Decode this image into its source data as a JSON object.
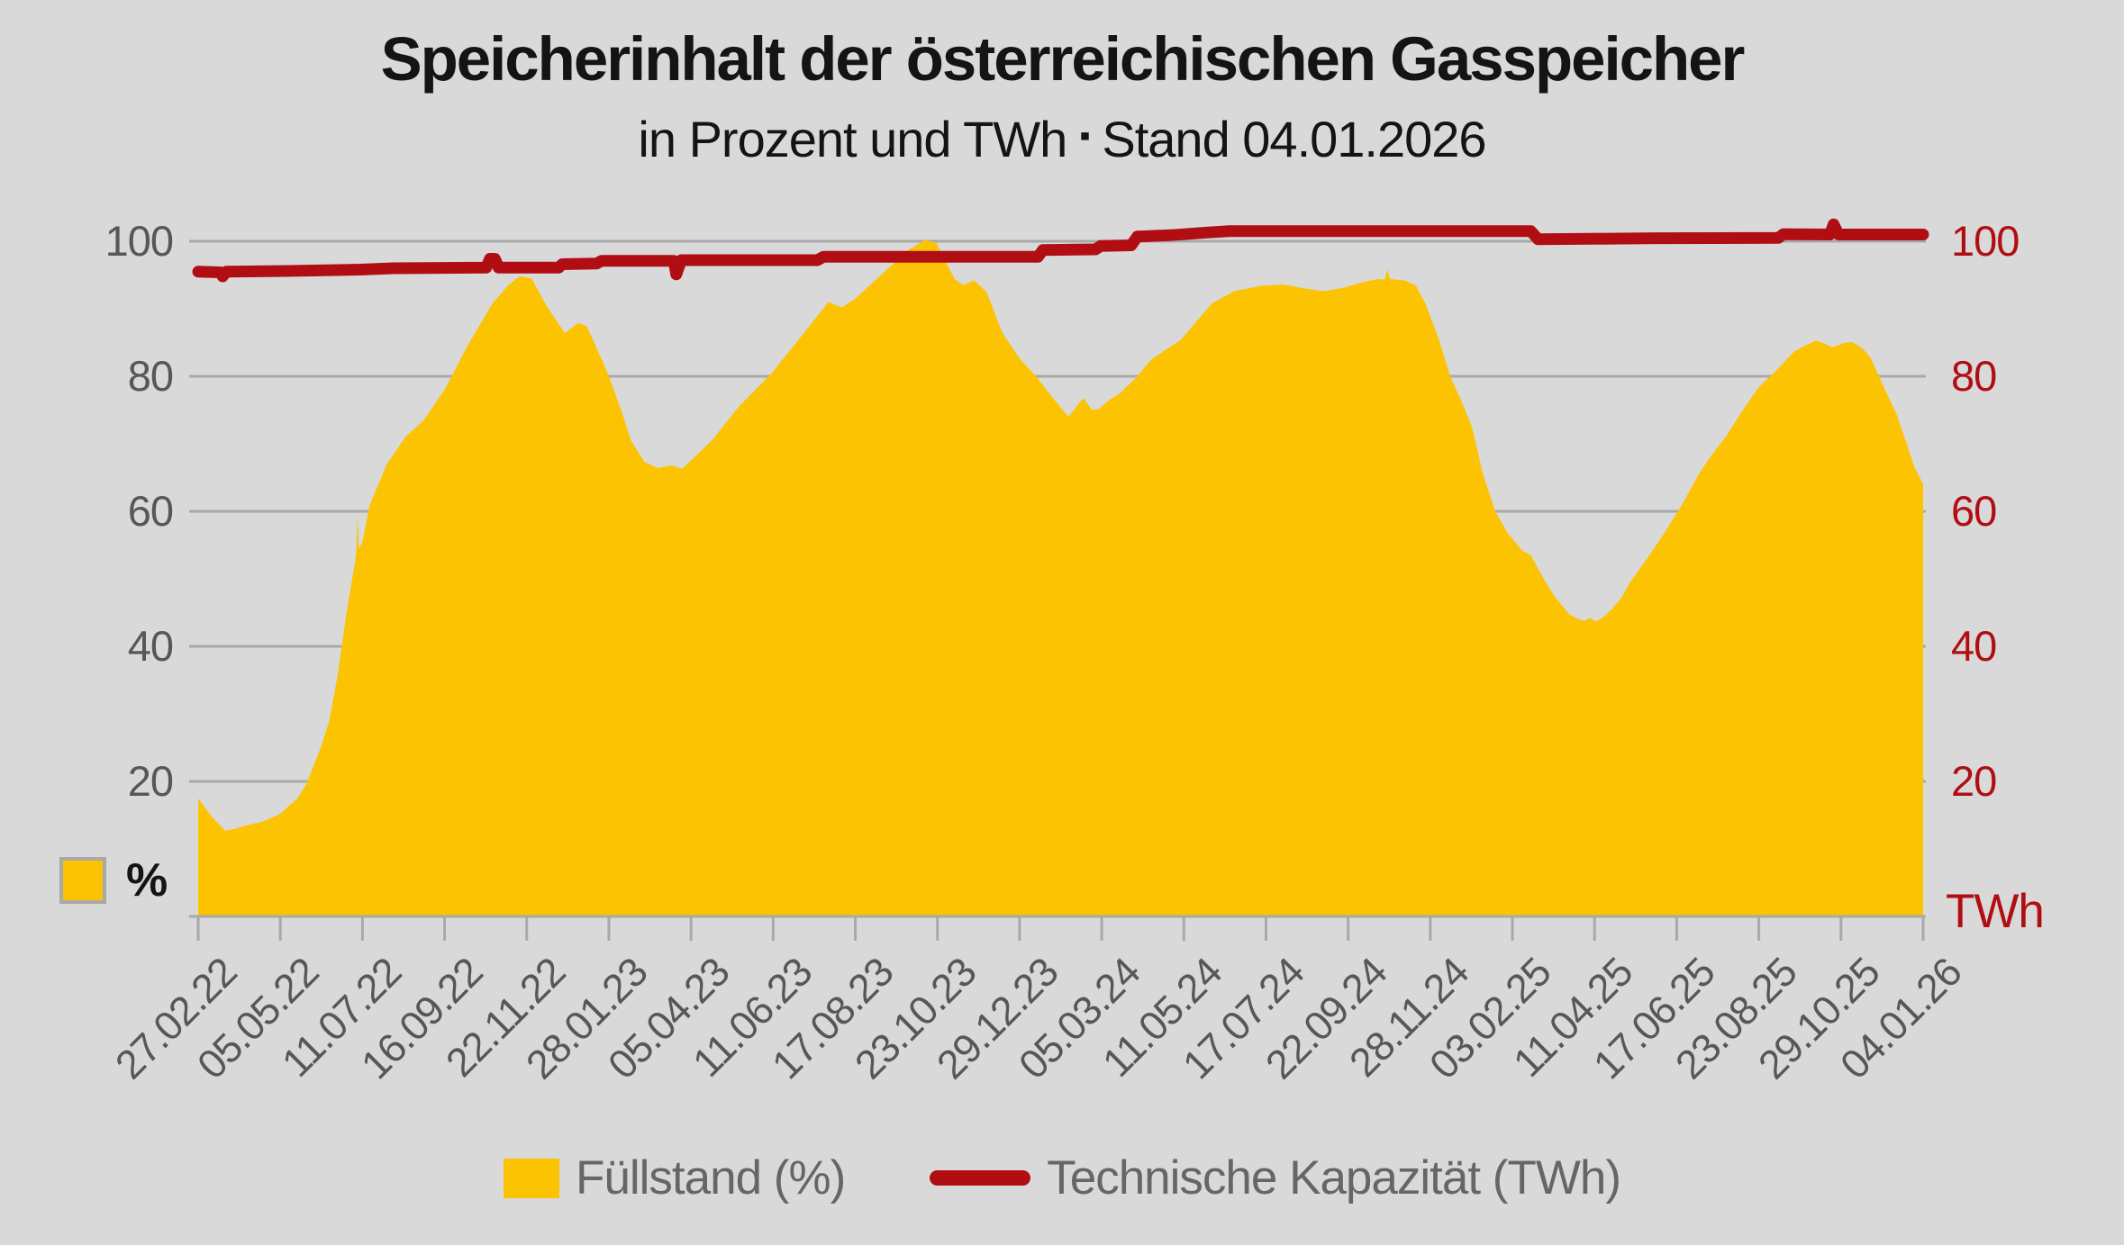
{
  "title": "Speicherinhalt der österreichischen Gasspeicher",
  "subtitle": {
    "left": "in Prozent und TWh",
    "separator": "▪",
    "right": "Stand 04.01.2026"
  },
  "legend": {
    "fill_label": "Füllstand (%)",
    "capacity_label": "Technische Kapazität (TWh)"
  },
  "left_axis_unit": "%",
  "right_axis_unit": "TWh",
  "colors": {
    "background": "#d9d9d9",
    "fill_area": "#fcc303",
    "capacity_line": "#b00e13",
    "gridline": "#a9a9a9",
    "axis_text": "#575757",
    "right_axis_text": "#b00e13",
    "title_text": "#141414",
    "legend_text": "#666666"
  },
  "chart_data": {
    "type": "area",
    "title": "Speicherinhalt der österreichischen Gasspeicher",
    "subtitle": "in Prozent und TWh · Stand 04.01.2026",
    "x_start_date": "27.02.22",
    "x_end_date": "04.01.26",
    "x_span_days": 1407,
    "x_tick_interval_days": 67,
    "x_tick_labels": [
      "27.02.22",
      "05.05.22",
      "11.07.22",
      "16.09.22",
      "22.11.22",
      "28.01.23",
      "05.04.23",
      "11.06.23",
      "17.08.23",
      "23.10.23",
      "29.12.23",
      "05.03.24",
      "11.05.24",
      "17.07.24",
      "22.09.24",
      "28.11.24",
      "03.02.25",
      "11.04.25",
      "17.06.25",
      "23.08.25",
      "29.10.25",
      "04.01.26"
    ],
    "left_axis": {
      "label": "%",
      "ticks": [
        20,
        40,
        60,
        80,
        100
      ],
      "range": [
        0,
        104
      ]
    },
    "right_axis": {
      "label": "TWh",
      "ticks": [
        20,
        40,
        60,
        80,
        100
      ],
      "range": [
        0,
        104
      ]
    },
    "grid": true,
    "legend_position": "bottom",
    "series": [
      {
        "name": "Füllstand (%)",
        "type": "area",
        "axis": "left",
        "color": "#fcc303",
        "points": [
          [
            0,
            17.5
          ],
          [
            11,
            14.8
          ],
          [
            22,
            12.7
          ],
          [
            31,
            13
          ],
          [
            37,
            13.4
          ],
          [
            52,
            14
          ],
          [
            67,
            15.2
          ],
          [
            81,
            17.5
          ],
          [
            88,
            19.5
          ],
          [
            100,
            25
          ],
          [
            107,
            29
          ],
          [
            114,
            36
          ],
          [
            121,
            45
          ],
          [
            128,
            52.5
          ],
          [
            129,
            54
          ],
          [
            130,
            59.5
          ],
          [
            131,
            54.5
          ],
          [
            134,
            55.5
          ],
          [
            140,
            61
          ],
          [
            154,
            67
          ],
          [
            169,
            71
          ],
          [
            184,
            73.5
          ],
          [
            201,
            78
          ],
          [
            220,
            84.6
          ],
          [
            240,
            90.8
          ],
          [
            253,
            93.5
          ],
          [
            262,
            94.8
          ],
          [
            272,
            94.5
          ],
          [
            284,
            90.5
          ],
          [
            299,
            86.4
          ],
          [
            310,
            87.9
          ],
          [
            317,
            87.4
          ],
          [
            334,
            80.5
          ],
          [
            345,
            75
          ],
          [
            353,
            70.5
          ],
          [
            364,
            67.3
          ],
          [
            375,
            66.4
          ],
          [
            386,
            66.8
          ],
          [
            395,
            66.3
          ],
          [
            400,
            67.2
          ],
          [
            419,
            70.5
          ],
          [
            441,
            75.5
          ],
          [
            467,
            80.3
          ],
          [
            494,
            86.4
          ],
          [
            514,
            91
          ],
          [
            525,
            90.2
          ],
          [
            536,
            91.5
          ],
          [
            551,
            94
          ],
          [
            566,
            96.5
          ],
          [
            580,
            98.8
          ],
          [
            593,
            100.2
          ],
          [
            602,
            99.8
          ],
          [
            611,
            96.5
          ],
          [
            617,
            94.4
          ],
          [
            624,
            93.5
          ],
          [
            633,
            94.2
          ],
          [
            643,
            92.5
          ],
          [
            656,
            86.4
          ],
          [
            671,
            82.4
          ],
          [
            683,
            80.1
          ],
          [
            698,
            76.6
          ],
          [
            710,
            74
          ],
          [
            722,
            76.8
          ],
          [
            729,
            75
          ],
          [
            735,
            75.2
          ],
          [
            743,
            76.5
          ],
          [
            752,
            77.5
          ],
          [
            766,
            80
          ],
          [
            777,
            82.4
          ],
          [
            793,
            84.4
          ],
          [
            801,
            85.3
          ],
          [
            816,
            88.5
          ],
          [
            827,
            90.8
          ],
          [
            845,
            92.6
          ],
          [
            867,
            93.4
          ],
          [
            885,
            93.6
          ],
          [
            903,
            93
          ],
          [
            918,
            92.6
          ],
          [
            934,
            93.1
          ],
          [
            951,
            94
          ],
          [
            962,
            94.4
          ],
          [
            968,
            94.3
          ],
          [
            970,
            95.9
          ],
          [
            972,
            94.4
          ],
          [
            984,
            94.2
          ],
          [
            993,
            93.5
          ],
          [
            1001,
            90.8
          ],
          [
            1012,
            85.5
          ],
          [
            1021,
            80.1
          ],
          [
            1030,
            76.5
          ],
          [
            1039,
            72.5
          ],
          [
            1048,
            65.5
          ],
          [
            1058,
            60
          ],
          [
            1068,
            56.8
          ],
          [
            1080,
            54.2
          ],
          [
            1087,
            53.5
          ],
          [
            1096,
            50.5
          ],
          [
            1106,
            47.5
          ],
          [
            1118,
            44.8
          ],
          [
            1126,
            44
          ],
          [
            1131,
            43.8
          ],
          [
            1135,
            44.2
          ],
          [
            1140,
            43.7
          ],
          [
            1146,
            44.3
          ],
          [
            1153,
            45.5
          ],
          [
            1161,
            47.2
          ],
          [
            1168,
            49.5
          ],
          [
            1183,
            53.3
          ],
          [
            1197,
            57.1
          ],
          [
            1212,
            61.5
          ],
          [
            1224,
            65.5
          ],
          [
            1234,
            68.2
          ],
          [
            1247,
            71.3
          ],
          [
            1260,
            75
          ],
          [
            1273,
            78.4
          ],
          [
            1288,
            81
          ],
          [
            1302,
            83.7
          ],
          [
            1311,
            84.6
          ],
          [
            1320,
            85.3
          ],
          [
            1327,
            84.8
          ],
          [
            1333,
            84.3
          ],
          [
            1342,
            84.9
          ],
          [
            1349,
            85.1
          ],
          [
            1357,
            84.2
          ],
          [
            1364,
            82.8
          ],
          [
            1376,
            78
          ],
          [
            1385,
            74.5
          ],
          [
            1394,
            69.8
          ],
          [
            1400,
            66.5
          ],
          [
            1407,
            64
          ]
        ]
      },
      {
        "name": "Technische Kapazität (TWh)",
        "type": "line",
        "axis": "right",
        "color": "#b00e13",
        "points": [
          [
            0,
            95.5
          ],
          [
            18,
            95.4
          ],
          [
            20,
            94.8
          ],
          [
            23,
            95.5
          ],
          [
            73,
            95.6
          ],
          [
            132,
            95.8
          ],
          [
            159,
            96
          ],
          [
            235,
            96.1
          ],
          [
            238,
            97.4
          ],
          [
            242,
            97.4
          ],
          [
            245,
            96.1
          ],
          [
            294,
            96.1
          ],
          [
            297,
            96.6
          ],
          [
            325,
            96.7
          ],
          [
            329,
            97.1
          ],
          [
            388,
            97.1
          ],
          [
            390,
            95.1
          ],
          [
            394,
            97.2
          ],
          [
            505,
            97.2
          ],
          [
            510,
            97.7
          ],
          [
            685,
            97.7
          ],
          [
            689,
            98.7
          ],
          [
            732,
            98.8
          ],
          [
            736,
            99.3
          ],
          [
            761,
            99.4
          ],
          [
            766,
            100.7
          ],
          [
            793,
            100.9
          ],
          [
            823,
            101.3
          ],
          [
            841,
            101.5
          ],
          [
            1087,
            101.5
          ],
          [
            1093,
            100.3
          ],
          [
            1161,
            100.4
          ],
          [
            1190,
            100.45
          ],
          [
            1289,
            100.5
          ],
          [
            1293,
            101.05
          ],
          [
            1331,
            101
          ],
          [
            1334,
            102.5
          ],
          [
            1338,
            101
          ],
          [
            1407,
            101
          ]
        ]
      }
    ]
  }
}
